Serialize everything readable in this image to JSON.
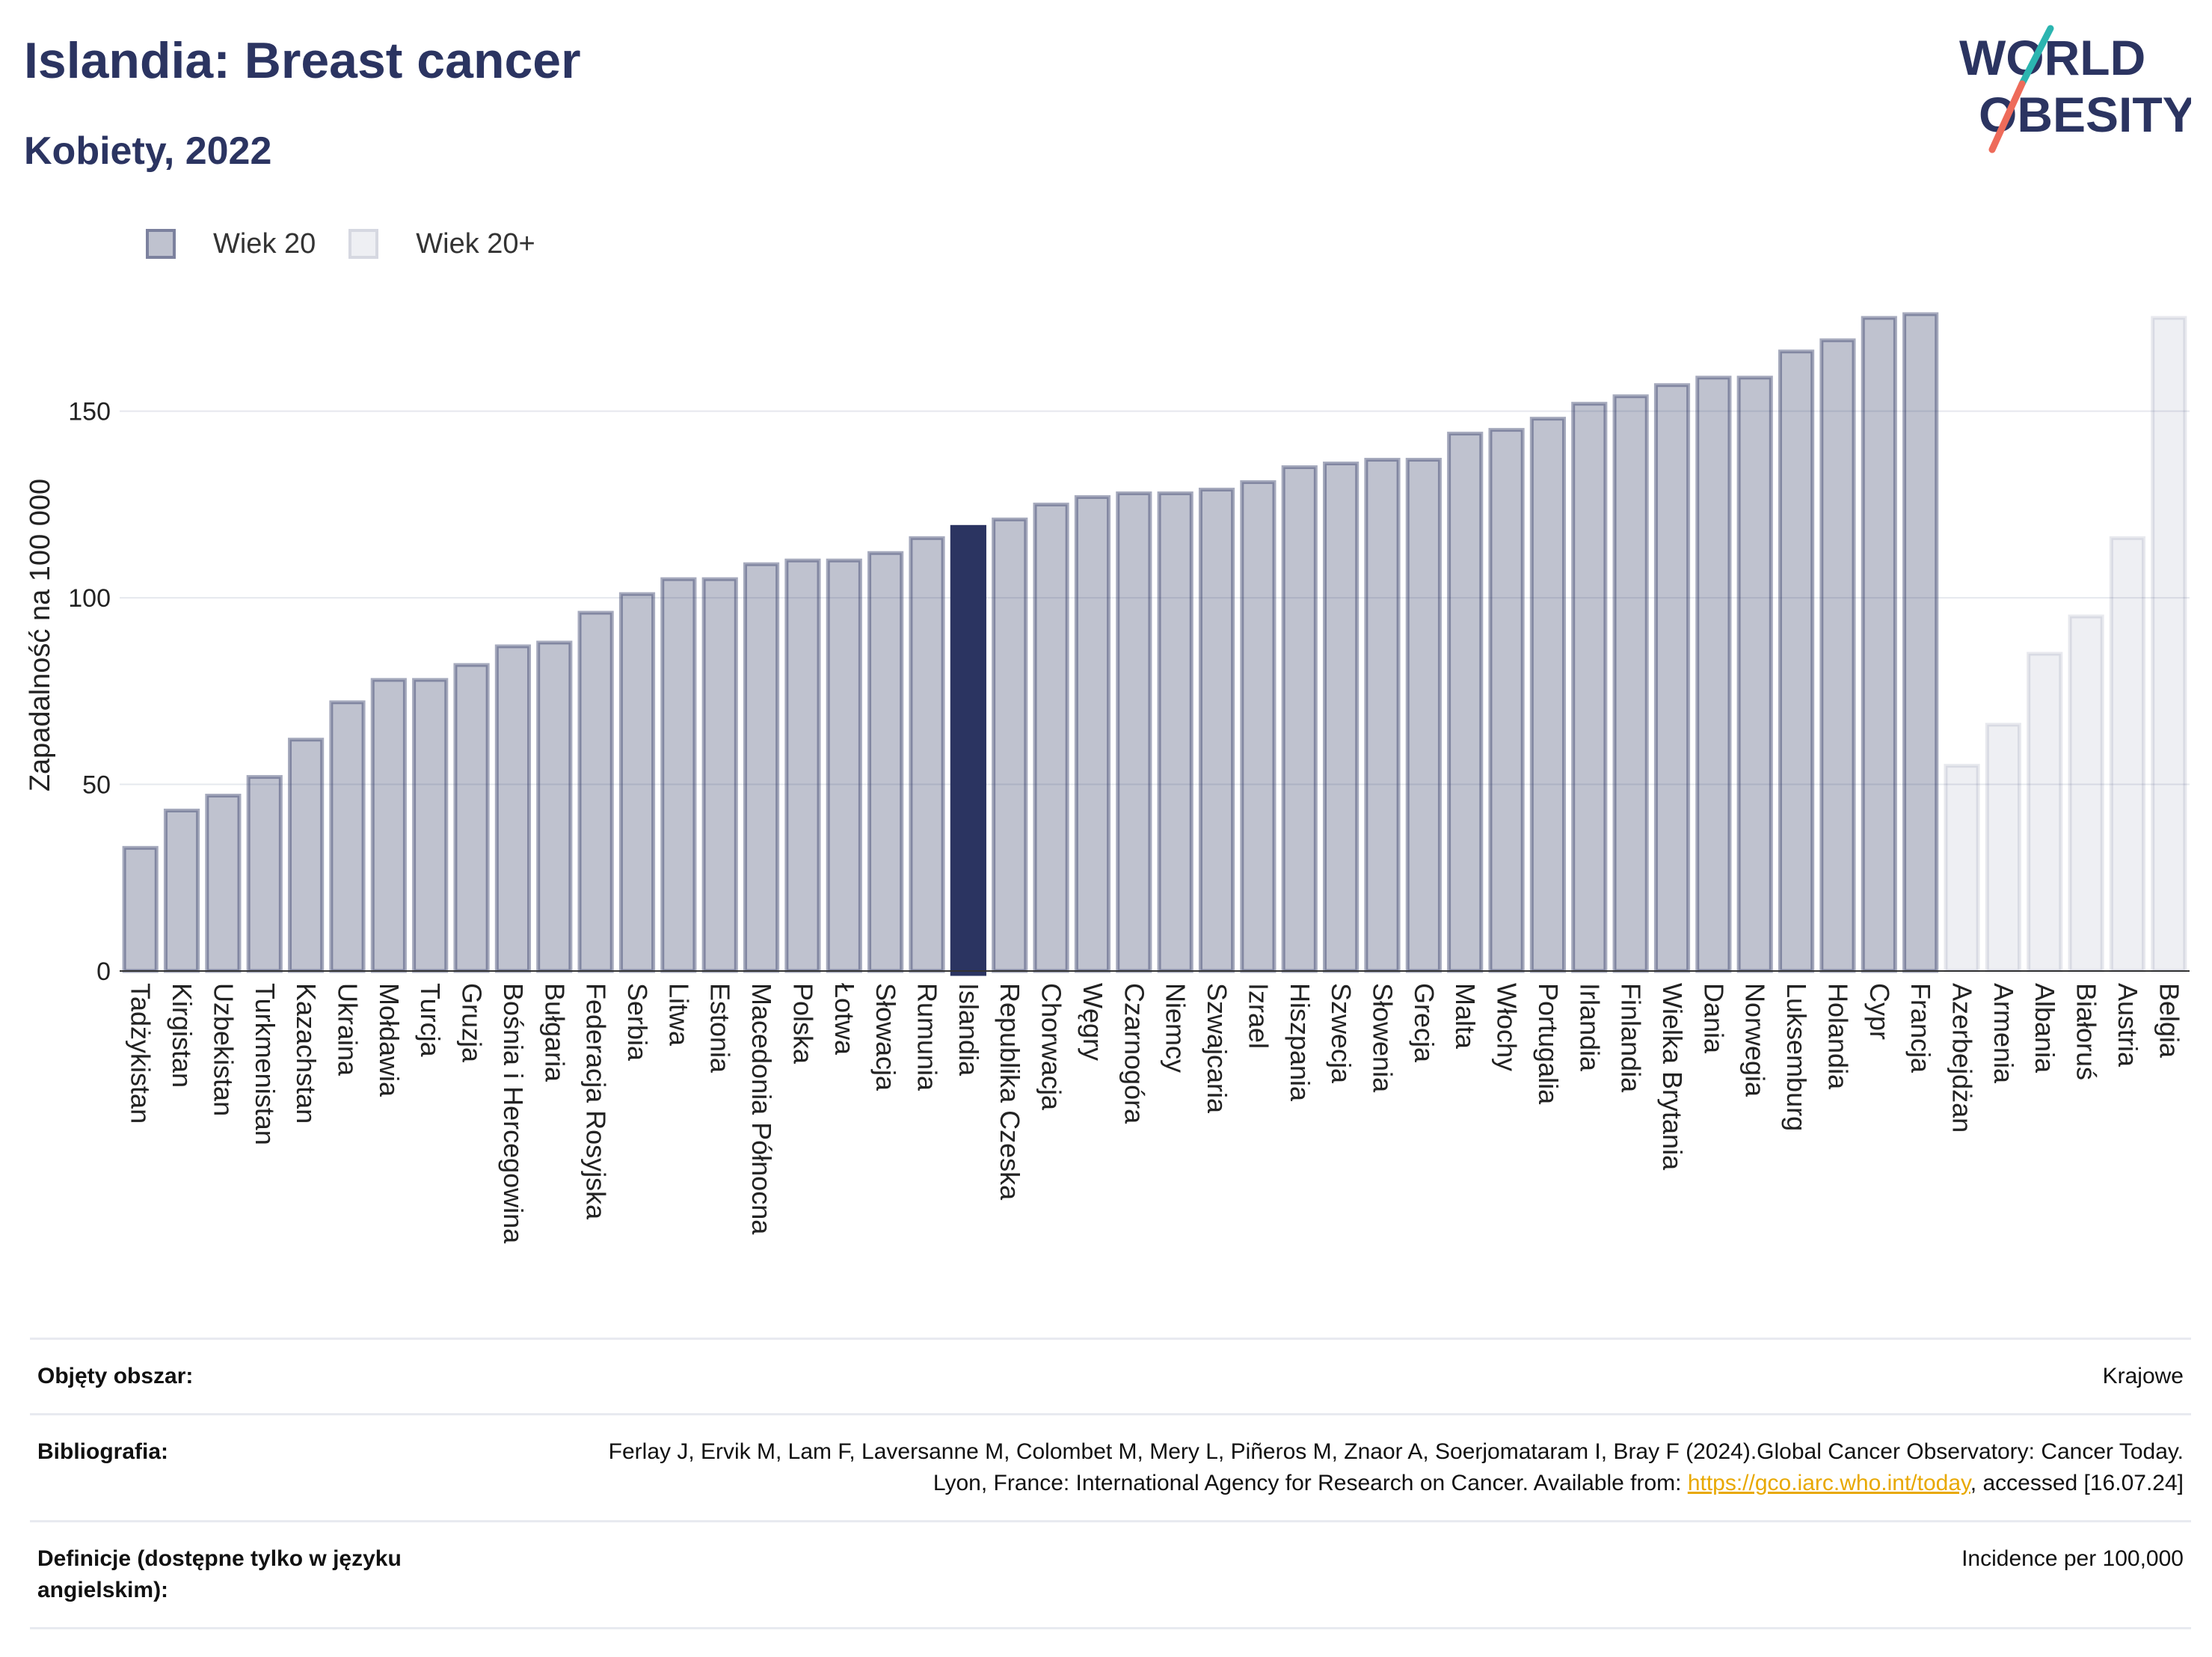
{
  "header": {
    "title": "Islandia: Breast cancer",
    "subtitle": "Kobiety, 2022",
    "logo_line1": "WORLD",
    "logo_line2": "OBESITY"
  },
  "legend": {
    "items": [
      {
        "label": "Wiek 20",
        "color": "#2b3461"
      },
      {
        "label": "Wiek 20+",
        "color": "#d9dbe5"
      }
    ]
  },
  "colors": {
    "primary": "#2b3461",
    "bar_fill": "#c0c4d2",
    "bar_light": "#eeeff3",
    "highlight": "#2b3461",
    "link": "#e8a800"
  },
  "chart_data": {
    "type": "bar",
    "ylabel": "Zapadalność na 100 000",
    "ylim": [
      0,
      180
    ],
    "yticks": [
      0,
      50,
      100,
      150
    ],
    "grid": true,
    "highlight": "Islandia",
    "categories": [
      "Tadżykistan",
      "Kirgistan",
      "Uzbekistan",
      "Turkmenistan",
      "Kazachstan",
      "Ukraina",
      "Mołdawia",
      "Turcja",
      "Gruzja",
      "Bośnia i Hercegowina",
      "Bułgaria",
      "Federacja Rosyjska",
      "Serbia",
      "Litwa",
      "Estonia",
      "Macedonia Północna",
      "Polska",
      "Łotwa",
      "Słowacja",
      "Rumunia",
      "Islandia",
      "Republika Czeska",
      "Chorwacja",
      "Węgry",
      "Czarnogóra",
      "Niemcy",
      "Szwajcaria",
      "Izrael",
      "Hiszpania",
      "Szwecja",
      "Słowenia",
      "Grecja",
      "Malta",
      "Włochy",
      "Portugalia",
      "Irlandia",
      "Finlandia",
      "Wielka Brytania",
      "Dania",
      "Norwegia",
      "Luksemburg",
      "Holandia",
      "Cypr",
      "Francja",
      "Azerbejdżan",
      "Armenia",
      "Albania",
      "Białoruś",
      "Austria",
      "Belgia"
    ],
    "series": [
      {
        "name": "Wiek 20",
        "values": [
          33,
          43,
          47,
          52,
          62,
          72,
          78,
          78,
          82,
          87,
          88,
          96,
          101,
          105,
          105,
          109,
          110,
          110,
          112,
          116,
          119,
          121,
          125,
          127,
          128,
          128,
          129,
          131,
          135,
          136,
          137,
          137,
          144,
          145,
          148,
          152,
          154,
          157,
          159,
          159,
          166,
          169,
          175,
          176,
          null,
          null,
          null,
          null,
          null,
          null
        ]
      },
      {
        "name": "Wiek 20+",
        "values": [
          null,
          null,
          null,
          null,
          null,
          null,
          null,
          null,
          null,
          null,
          null,
          null,
          null,
          null,
          null,
          null,
          null,
          null,
          null,
          null,
          null,
          null,
          null,
          null,
          null,
          null,
          null,
          null,
          null,
          null,
          null,
          null,
          null,
          null,
          null,
          null,
          null,
          null,
          null,
          null,
          null,
          null,
          null,
          null,
          55,
          66,
          85,
          95,
          116,
          175
        ]
      }
    ]
  },
  "info": {
    "rows": [
      {
        "label": "Objęty obszar:",
        "value": "Krajowe"
      },
      {
        "label": "Bibliografia:",
        "value_pre": "Ferlay J, Ervik M, Lam F, Laversanne M, Colombet M, Mery L, Piñeros M, Znaor A, Soerjomataram I, Bray F (2024).Global Cancer Observatory: Cancer Today. Lyon, France: International Agency for Research on Cancer. Available from: ",
        "link": "https://gco.iarc.who.int/today",
        "value_post": ", accessed [16.07.24]"
      },
      {
        "label": "Definicje (dostępne tylko w języku angielskim):",
        "value": "Incidence per 100,000"
      }
    ]
  }
}
